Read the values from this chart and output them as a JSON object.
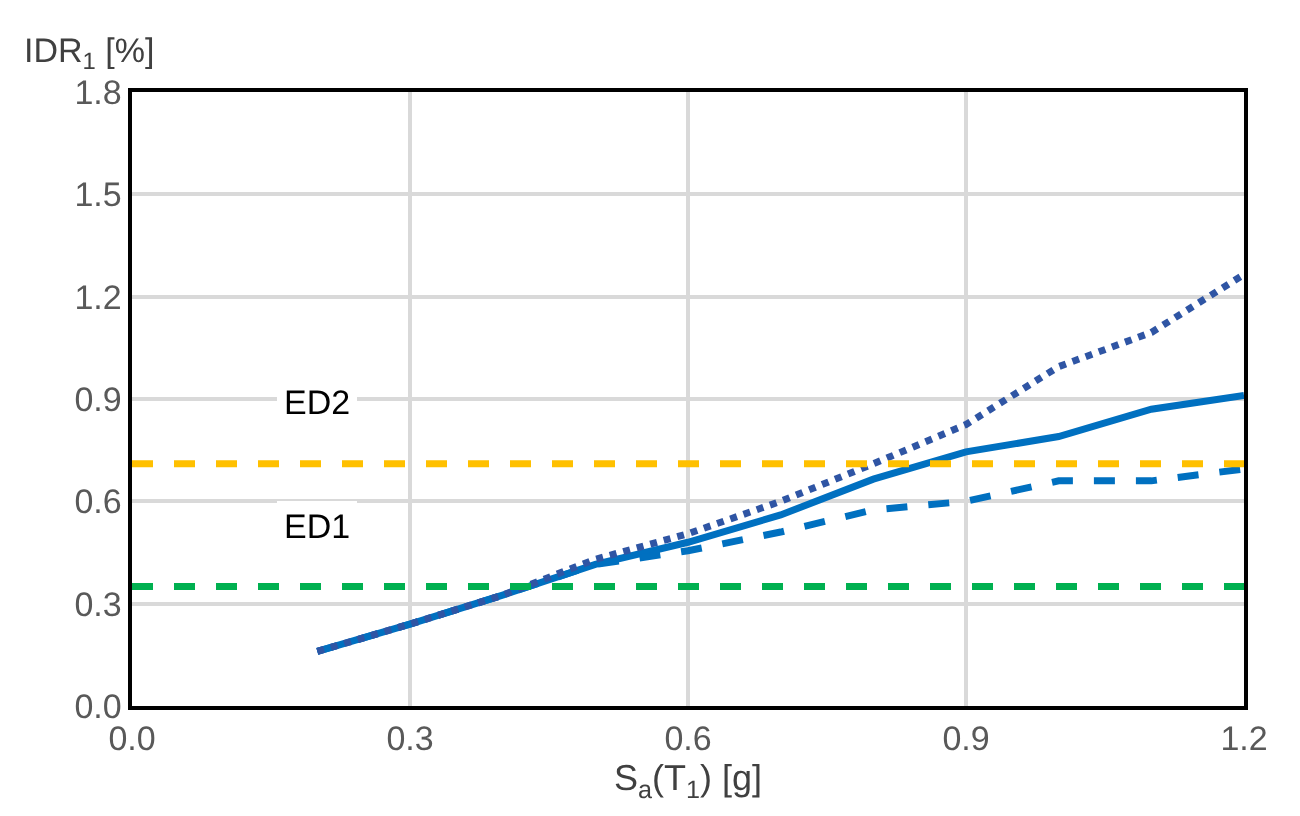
{
  "chart_data": {
    "type": "line",
    "xlabel": "S$_{a}$(T$_{1}$) [g]",
    "ylabel": "IDR$_{1}$ [%]",
    "x": [
      0.2,
      0.3,
      0.4,
      0.5,
      0.6,
      0.7,
      0.8,
      0.9,
      1.0,
      1.1,
      1.2
    ],
    "series": [
      {
        "color": "#0070c0",
        "line_style": "solid",
        "values": [
          0.16,
          0.24,
          0.325,
          0.415,
          0.48,
          0.56,
          0.665,
          0.745,
          0.79,
          0.87,
          0.91
        ]
      },
      {
        "color": "#0070c0",
        "line_style": "dashed",
        "values": [
          0.16,
          0.24,
          0.325,
          0.415,
          0.455,
          0.51,
          0.575,
          0.6,
          0.66,
          0.66,
          0.695
        ]
      },
      {
        "color": "#2f55a4",
        "line_style": "dotted",
        "values": [
          0.16,
          0.24,
          0.325,
          0.43,
          0.505,
          0.6,
          0.71,
          0.825,
          0.995,
          1.095,
          1.265
        ]
      }
    ],
    "ref_lines": [
      {
        "axis": "y",
        "value": 0.71,
        "label": "ED2",
        "color": "#ffc000",
        "line_style": "dashed"
      },
      {
        "axis": "y",
        "value": 0.35,
        "label": "ED1",
        "color": "#00b050",
        "line_style": "dashed"
      }
    ],
    "xlim": [
      0,
      1.2
    ],
    "xticks": [
      {
        "value": 0,
        "label": "0.0"
      },
      0.3,
      0.6,
      0.9,
      1.2
    ],
    "ylim": [
      0,
      1.8
    ],
    "yticks": [
      {
        "value": 0,
        "label": "0.0"
      },
      0.3,
      0.6,
      0.9,
      1.2,
      1.5,
      1.8
    ],
    "grid": true,
    "marker": "none"
  }
}
